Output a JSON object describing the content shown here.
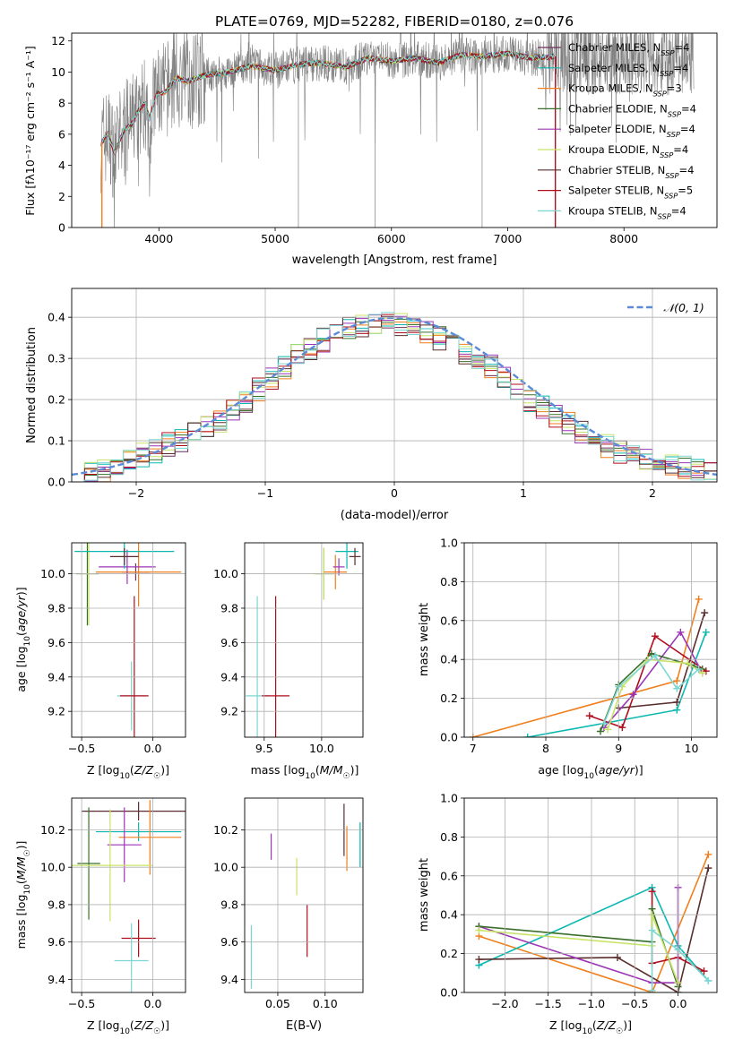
{
  "figure_title": "PLATE=0769, MJD=52282, FIBERID=0180, z=0.076",
  "colors": {
    "grid": "#b0b0b0",
    "data": "#808080",
    "normal": "#5b8bd8",
    "series": [
      "#6c2f5a",
      "#0bb8b0",
      "#f07f1c",
      "#3a6f2a",
      "#9b35b5",
      "#c8e468",
      "#5a2e2e",
      "#b00d1d",
      "#7cd7d2"
    ]
  },
  "chart_data": [
    {
      "id": "spectrum",
      "type": "line",
      "title": "PLATE=0769, MJD=52282, FIBERID=0180, z=0.076",
      "xlabel": "wavelength [Angstrom, rest frame]",
      "ylabel": "Flux [fλ10⁻¹⁷ erg cm⁻² s⁻¹ A⁻¹]",
      "xlim": [
        3250,
        8800
      ],
      "ylim": [
        0,
        12.5
      ],
      "xticks": [
        4000,
        5000,
        6000,
        7000,
        8000
      ],
      "yticks": [
        0,
        2,
        4,
        6,
        8,
        10,
        12
      ],
      "grid": false,
      "legend_position": "right",
      "model_continuum": {
        "x": [
          3500,
          3560,
          3620,
          3700,
          3760,
          3820,
          3880,
          3920,
          3980,
          4050,
          4150,
          4250,
          4400,
          4600,
          4800,
          5000,
          5200,
          5400,
          5600,
          5800,
          6000,
          6200,
          6400,
          6600,
          6800,
          7000,
          7200,
          7400
        ],
        "y": [
          5.4,
          6.0,
          4.8,
          6.3,
          6.6,
          7.5,
          8.0,
          7.0,
          8.6,
          8.7,
          9.6,
          9.4,
          9.8,
          10.0,
          10.4,
          10.1,
          10.5,
          10.6,
          10.3,
          10.9,
          10.7,
          10.9,
          10.6,
          11.1,
          11.0,
          11.2,
          10.9,
          11.0
        ]
      },
      "series": [
        {
          "name": "Chabrier MILES, N_SSP=4",
          "legend": "Chabrier MILES, NSSP=4"
        },
        {
          "name": "Salpeter MILES, N_SSP=4",
          "legend": "Salpeter MILES, NSSP=4"
        },
        {
          "name": "Kroupa MILES, N_SSP=3",
          "legend": "Kroupa MILES, NSSP=3"
        },
        {
          "name": "Chabrier ELODIE, N_SSP=4",
          "legend": "Chabrier ELODIE, NSSP=4"
        },
        {
          "name": "Salpeter ELODIE, N_SSP=4",
          "legend": "Salpeter ELODIE, NSSP=4"
        },
        {
          "name": "Kroupa ELODIE, N_SSP=4",
          "legend": "Kroupa ELODIE, NSSP=4"
        },
        {
          "name": "Chabrier STELIB, N_SSP=4",
          "legend": "Chabrier STELIB, NSSP=4"
        },
        {
          "name": "Salpeter STELIB, N_SSP=5",
          "legend": "Salpeter STELIB, NSSP=5"
        },
        {
          "name": "Kroupa STELIB, N_SSP=4",
          "legend": "Kroupa STELIB, NSSP=4"
        }
      ]
    },
    {
      "id": "residuals",
      "type": "line",
      "xlabel": "(data-model)/error",
      "ylabel": "Normed distribution",
      "xlim": [
        -2.5,
        2.5
      ],
      "ylim": [
        0,
        0.47
      ],
      "xticks": [
        -2,
        -1,
        0,
        1,
        2
      ],
      "yticks": [
        0.0,
        0.1,
        0.2,
        0.3,
        0.4
      ],
      "grid": true,
      "legend_position": "top-right",
      "legend": "𝒩(0, 1)",
      "bins": {
        "start": -2.5,
        "width": 0.1,
        "count": 50
      },
      "histogram_envelope": [
        0.02,
        0.025,
        0.03,
        0.04,
        0.05,
        0.065,
        0.075,
        0.09,
        0.1,
        0.115,
        0.135,
        0.15,
        0.17,
        0.195,
        0.225,
        0.25,
        0.28,
        0.305,
        0.325,
        0.345,
        0.355,
        0.37,
        0.38,
        0.385,
        0.39,
        0.385,
        0.375,
        0.36,
        0.35,
        0.335,
        0.315,
        0.3,
        0.28,
        0.255,
        0.23,
        0.2,
        0.18,
        0.16,
        0.14,
        0.12,
        0.1,
        0.085,
        0.07,
        0.06,
        0.05,
        0.045,
        0.04,
        0.035,
        0.03,
        0.025
      ]
    },
    {
      "id": "age-vs-z",
      "type": "scatter",
      "xlabel": "Z [log10(Z/Z☉)]",
      "ylabel": "age  [log10(age/yr)]",
      "xlim": [
        -0.57,
        0.23
      ],
      "ylim": [
        9.05,
        10.18
      ],
      "xticks": [
        -0.5,
        0.0
      ],
      "yticks": [
        9.2,
        9.4,
        9.6,
        9.8,
        10.0
      ],
      "grid": true,
      "points": [
        {
          "series": 8,
          "x": -0.15,
          "xerr": 0.1,
          "y": 9.29,
          "yerr": 0.2
        },
        {
          "series": 7,
          "x": -0.13,
          "xerr": 0.1,
          "y": 9.29,
          "yerr": 0.58
        },
        {
          "series": 3,
          "x": -0.46,
          "xerr": 0.08,
          "y": 10.0,
          "yerr": 0.3
        },
        {
          "series": 5,
          "x": -0.45,
          "xerr": 0.05,
          "y": 10.0,
          "yerr": 0.3
        },
        {
          "series": 0,
          "x": -0.12,
          "xerr": 0.1,
          "y": 10.01,
          "yerr": 0.05
        },
        {
          "series": 2,
          "x": -0.1,
          "xerr": 0.3,
          "y": 10.01,
          "yerr": 0.2
        },
        {
          "series": 4,
          "x": -0.18,
          "xerr": 0.2,
          "y": 10.04,
          "yerr": 0.1
        },
        {
          "series": 1,
          "x": -0.2,
          "xerr": 0.35,
          "y": 10.13,
          "yerr": 0.1
        },
        {
          "series": 6,
          "x": -0.2,
          "xerr": 0.1,
          "y": 10.1,
          "yerr": 0.05
        }
      ]
    },
    {
      "id": "age-vs-mass",
      "type": "scatter",
      "xlabel": "mass [log10(M/M☉)]",
      "ylabel": "",
      "xlim": [
        9.33,
        10.36
      ],
      "ylim": [
        9.05,
        10.18
      ],
      "xticks": [
        9.5,
        10.0
      ],
      "yticks": [
        9.2,
        9.4,
        9.6,
        9.8,
        10.0
      ],
      "grid": true,
      "points": [
        {
          "series": 8,
          "x": 9.44,
          "xerr": 0.1,
          "y": 9.29,
          "yerr": 0.58
        },
        {
          "series": 7,
          "x": 9.6,
          "xerr": 0.12,
          "y": 9.29,
          "yerr": 0.58
        },
        {
          "series": 3,
          "x": 10.02,
          "xerr": 0.08,
          "y": 10.0,
          "yerr": 0.15
        },
        {
          "series": 5,
          "x": 10.02,
          "xerr": 0.1,
          "y": 10.0,
          "yerr": 0.15
        },
        {
          "series": 2,
          "x": 10.12,
          "xerr": 0.1,
          "y": 10.01,
          "yerr": 0.1
        },
        {
          "series": 4,
          "x": 10.15,
          "xerr": 0.05,
          "y": 10.04,
          "yerr": 0.05
        },
        {
          "series": 1,
          "x": 10.22,
          "xerr": 0.1,
          "y": 10.13,
          "yerr": 0.1
        },
        {
          "series": 6,
          "x": 10.29,
          "xerr": 0.05,
          "y": 10.1,
          "yerr": 0.05
        }
      ]
    },
    {
      "id": "mass-weight-vs-age",
      "type": "line",
      "xlabel": "age  [log10(age/yr)]",
      "ylabel": "mass weight",
      "xlim": [
        6.88,
        10.35
      ],
      "ylim": [
        0,
        1.0
      ],
      "xticks": [
        7,
        8,
        9,
        10
      ],
      "yticks": [
        0.0,
        0.2,
        0.4,
        0.6,
        0.8,
        1.0
      ],
      "grid": true,
      "series": [
        {
          "series": 2,
          "x": [
            7.0,
            9.8,
            10.1
          ],
          "y": [
            0.0,
            0.29,
            0.71
          ]
        },
        {
          "series": 1,
          "x": [
            7.75,
            9.8,
            10.2
          ],
          "y": [
            0.0,
            0.14,
            0.54
          ]
        },
        {
          "series": 6,
          "x": [
            9.0,
            9.8,
            10.18
          ],
          "y": [
            0.15,
            0.18,
            0.64
          ]
        },
        {
          "series": 7,
          "x": [
            8.6,
            9.05,
            9.5,
            10.2
          ],
          "y": [
            0.11,
            0.05,
            0.52,
            0.34
          ]
        },
        {
          "series": 4,
          "x": [
            8.8,
            9.2,
            9.85,
            10.15
          ],
          "y": [
            0.05,
            0.22,
            0.54,
            0.33
          ]
        },
        {
          "series": 3,
          "x": [
            8.75,
            9.0,
            9.45,
            10.0,
            10.15
          ],
          "y": [
            0.03,
            0.27,
            0.43,
            0.37,
            0.35
          ]
        },
        {
          "series": 5,
          "x": [
            8.85,
            9.05,
            9.4,
            9.95,
            10.15
          ],
          "y": [
            0.04,
            0.26,
            0.4,
            0.38,
            0.33
          ]
        },
        {
          "series": 8,
          "x": [
            8.8,
            9.0,
            9.5,
            9.8,
            10.1
          ],
          "y": [
            0.07,
            0.26,
            0.42,
            0.25,
            0.35
          ]
        }
      ]
    },
    {
      "id": "mass-vs-z",
      "type": "scatter",
      "xlabel": "Z [log10(Z/Z☉)]",
      "ylabel": "mass [log10(M/M☉)]",
      "xlim": [
        -0.57,
        0.23
      ],
      "ylim": [
        9.33,
        10.37
      ],
      "xticks": [
        -0.5,
        0.0
      ],
      "yticks": [
        9.4,
        9.6,
        9.8,
        10.0,
        10.2
      ],
      "grid": true,
      "points": [
        {
          "series": 6,
          "x": -0.1,
          "xerr": 0.4,
          "y": 10.3,
          "yerr": 0.05
        },
        {
          "series": 1,
          "x": -0.1,
          "xerr": 0.3,
          "y": 10.19,
          "yerr": 0.05
        },
        {
          "series": 2,
          "x": -0.02,
          "xerr": 0.22,
          "y": 10.16,
          "yerr": 0.2
        },
        {
          "series": 4,
          "x": -0.2,
          "xerr": 0.12,
          "y": 10.12,
          "yerr": 0.2
        },
        {
          "series": 3,
          "x": -0.45,
          "xerr": 0.08,
          "y": 10.02,
          "yerr": 0.3
        },
        {
          "series": 5,
          "x": -0.3,
          "xerr": 0.3,
          "y": 10.01,
          "yerr": 0.3
        },
        {
          "series": 7,
          "x": -0.1,
          "xerr": 0.12,
          "y": 9.62,
          "yerr": 0.1
        },
        {
          "series": 8,
          "x": -0.15,
          "xerr": 0.12,
          "y": 9.5,
          "yerr": 0.2
        }
      ]
    },
    {
      "id": "mass-vs-ebv",
      "type": "scatter",
      "xlabel": "E(B-V)",
      "ylabel": "",
      "xlim": [
        0.015,
        0.14
      ],
      "ylim": [
        9.33,
        10.37
      ],
      "xticks": [
        0.05,
        0.1
      ],
      "xtick_labels": [
        "0.05",
        "0.10"
      ],
      "yticks": [
        9.4,
        9.6,
        9.8,
        10.0,
        10.2
      ],
      "grid": true,
      "points": [
        {
          "series": 8,
          "x": 0.022,
          "y": 9.52,
          "yerr": 0.17
        },
        {
          "series": 4,
          "x": 0.043,
          "y": 10.11,
          "yerr": 0.07
        },
        {
          "series": 5,
          "x": 0.07,
          "y": 9.95,
          "yerr": 0.1
        },
        {
          "series": 7,
          "x": 0.081,
          "y": 9.66,
          "yerr": 0.14
        },
        {
          "series": 6,
          "x": 0.12,
          "y": 10.2,
          "yerr": 0.14
        },
        {
          "series": 2,
          "x": 0.123,
          "y": 10.1,
          "yerr": 0.12
        },
        {
          "series": 1,
          "x": 0.137,
          "y": 10.12,
          "yerr": 0.12
        }
      ]
    },
    {
      "id": "mass-weight-vs-z",
      "type": "line",
      "xlabel": "Z [log10(Z/Z☉)]",
      "ylabel": "mass weight",
      "xlim": [
        -2.47,
        0.45
      ],
      "ylim": [
        0,
        1.0
      ],
      "xticks": [
        -2.0,
        -1.5,
        -1.0,
        -0.5,
        0.0
      ],
      "yticks": [
        0.0,
        0.2,
        0.4,
        0.6,
        0.8,
        1.0
      ],
      "grid": true,
      "series": [
        {
          "series": 2,
          "x": [
            -2.3,
            -0.3,
            0.35
          ],
          "y": [
            0.29,
            0.0,
            0.71
          ]
        },
        {
          "series": 1,
          "x": [
            -2.3,
            -0.3,
            0.0,
            0.35
          ],
          "y": [
            0.14,
            0.54,
            0.24,
            0.06
          ]
        },
        {
          "series": 6,
          "x": [
            -2.3,
            -0.7,
            0.0,
            0.35
          ],
          "y": [
            0.17,
            0.18,
            0.0,
            0.64
          ]
        },
        {
          "series": 7,
          "x": [
            -0.3,
            -0.3,
            0.0,
            0.3
          ],
          "y": [
            0.52,
            0.15,
            0.18,
            0.11
          ]
        },
        {
          "series": 4,
          "x": [
            -2.3,
            -0.3,
            0.0,
            0.0
          ],
          "y": [
            0.34,
            0.05,
            0.05,
            0.54
          ]
        },
        {
          "series": 3,
          "x": [
            -2.3,
            -0.3,
            -0.3,
            0.0
          ],
          "y": [
            0.34,
            0.26,
            0.43,
            0.03
          ]
        },
        {
          "series": 5,
          "x": [
            -2.3,
            -0.3,
            -0.3,
            0.0
          ],
          "y": [
            0.32,
            0.24,
            0.4,
            0.05
          ]
        },
        {
          "series": 8,
          "x": [
            -0.3,
            -0.3,
            0.0,
            0.35
          ],
          "y": [
            0.01,
            0.32,
            0.22,
            0.06
          ]
        }
      ]
    }
  ]
}
